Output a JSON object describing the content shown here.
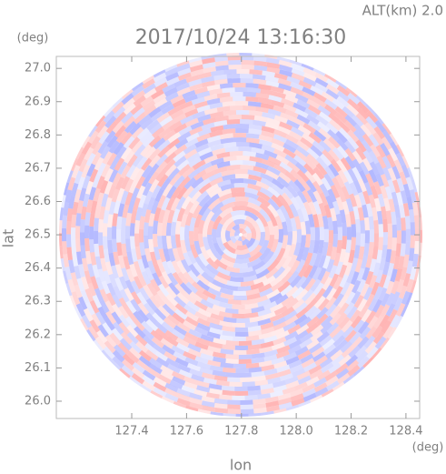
{
  "chart_data": {
    "type": "radar-ppi",
    "title": "2017/10/24 13:16:30",
    "subtitle": "ALT(km) 2.0",
    "x_label": "lon",
    "y_label": "lat",
    "x_unit": "(deg)",
    "y_unit": "(deg)",
    "xlim": [
      127.125,
      128.45
    ],
    "ylim": [
      25.948,
      27.036
    ],
    "xticks": [
      127.4,
      127.6,
      127.8,
      {
        "value": 128.0,
        "label": "128.0"
      },
      128.2,
      128.4
    ],
    "yticks": [
      {
        "value": 26.0,
        "label": "26.0"
      },
      26.1,
      26.2,
      26.3,
      26.4,
      26.5,
      26.6,
      26.7,
      26.8,
      26.9,
      {
        "value": 27.0,
        "label": "27.0"
      }
    ]
  }
}
